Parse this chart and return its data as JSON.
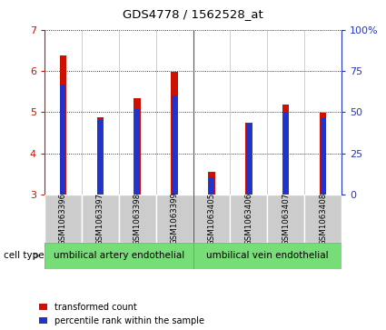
{
  "title": "GDS4778 / 1562528_at",
  "samples": [
    "GSM1063396",
    "GSM1063397",
    "GSM1063398",
    "GSM1063399",
    "GSM1063405",
    "GSM1063406",
    "GSM1063407",
    "GSM1063408"
  ],
  "red_values": [
    6.38,
    4.88,
    5.35,
    5.97,
    3.55,
    4.75,
    5.18,
    4.98
  ],
  "blue_values": [
    5.67,
    4.8,
    5.08,
    5.4,
    3.42,
    4.72,
    5.0,
    4.88
  ],
  "ylim": [
    3,
    7
  ],
  "yticks_left": [
    3,
    4,
    5,
    6,
    7
  ],
  "y_right_labels": [
    "0",
    "25",
    "50",
    "75",
    "100%"
  ],
  "cell_type_groups": [
    {
      "label": "umbilical artery endothelial",
      "start": 0,
      "end": 3
    },
    {
      "label": "umbilical vein endothelial",
      "start": 4,
      "end": 7
    }
  ],
  "cell_type_label": "cell type",
  "legend_red": "transformed count",
  "legend_blue": "percentile rank within the sample",
  "bar_width": 0.18,
  "blue_bar_width": 0.14,
  "bar_color_red": "#cc1100",
  "bar_color_blue": "#2233cc",
  "background_plot": "#ffffff",
  "ticklabel_bg": "#cccccc",
  "group_color": "#77dd77",
  "ymin": 3
}
